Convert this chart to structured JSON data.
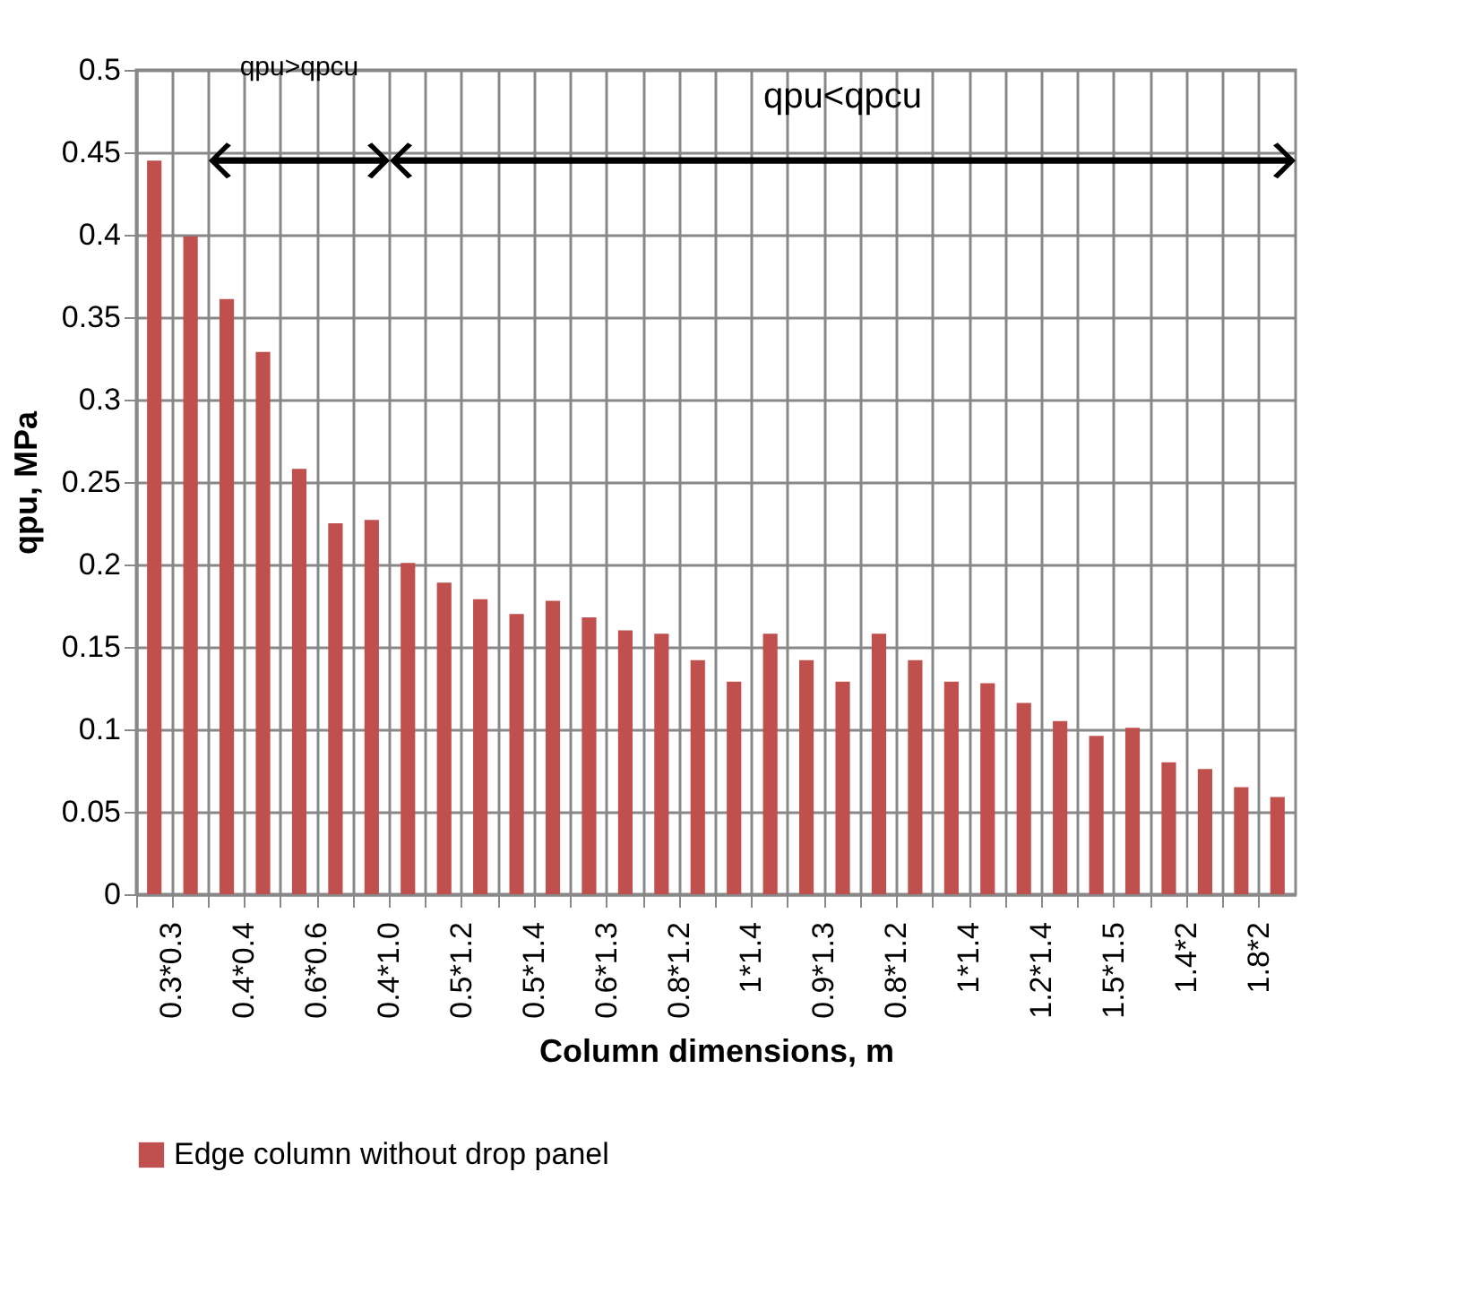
{
  "chart_data": {
    "type": "bar",
    "xlabel": "Column dimensions, m",
    "ylabel": "qpu, MPa",
    "categories": [
      "0.3*0.3",
      null,
      "0.4*0.4",
      null,
      "0.6*0.6",
      null,
      "0.4*1.0",
      null,
      "0.5*1.2",
      null,
      "0.5*1.4",
      null,
      "0.6*1.3",
      null,
      "0.8*1.2",
      null,
      "1*1.4",
      null,
      "0.9*1.3",
      null,
      "0.8*1.2",
      null,
      "1*1.4",
      null,
      "1.2*1.4",
      null,
      "1.5*1.5",
      null,
      "1.4*2",
      null,
      "1.8*2",
      null
    ],
    "series": [
      {
        "name": "Edge column without drop panel",
        "color": "#c0504d",
        "values": [
          0.445,
          0.399,
          0.361,
          0.329,
          0.258,
          0.225,
          0.227,
          0.201,
          0.189,
          0.179,
          0.17,
          0.178,
          0.168,
          0.16,
          0.158,
          0.142,
          0.129,
          0.158,
          0.142,
          0.129,
          0.158,
          0.142,
          0.129,
          0.128,
          0.116,
          0.105,
          0.096,
          0.101,
          0.08,
          0.076,
          0.065,
          0.059
        ]
      }
    ],
    "ylim": [
      0,
      0.5
    ],
    "yticks": [
      0,
      0.05,
      0.1,
      0.15,
      0.2,
      0.25,
      0.3,
      0.35,
      0.4,
      0.45,
      0.5
    ],
    "grid": true,
    "legend": "bottom",
    "annotations": [
      "qpu>qpcu",
      "qpu<qpcu"
    ]
  }
}
